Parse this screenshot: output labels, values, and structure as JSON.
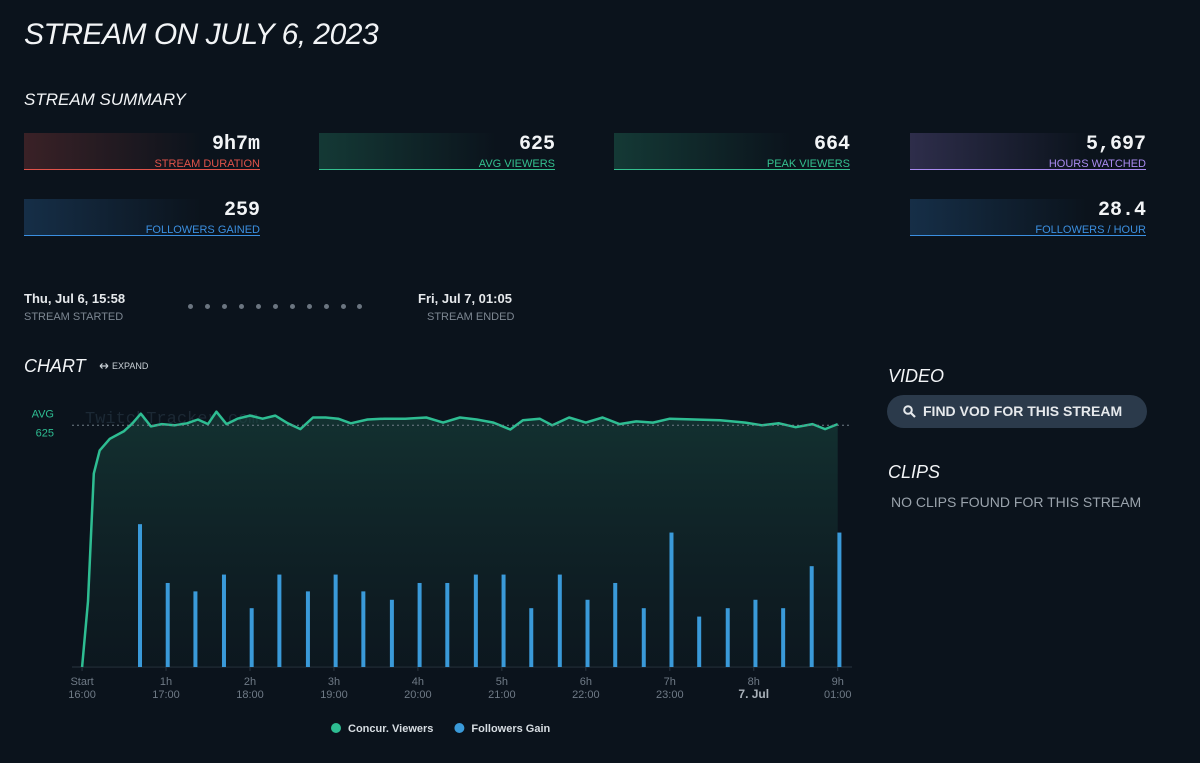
{
  "header": {
    "title": "STREAM ON JULY 6, 2023"
  },
  "summary": {
    "title": "STREAM SUMMARY",
    "stats": [
      {
        "value": "9h7m",
        "label": "STREAM DURATION",
        "color": "#e0534a"
      },
      {
        "value": "625",
        "label": "AVG VIEWERS",
        "color": "#34c08f"
      },
      {
        "value": "664",
        "label": "PEAK VIEWERS",
        "color": "#34c08f"
      },
      {
        "value": "5,697",
        "label": "HOURS WATCHED",
        "color": "#a98bf0"
      },
      {
        "value": "259",
        "label": "FOLLOWERS GAINED",
        "color": "#3b8fe0"
      },
      {
        "value": "28.4",
        "label": "FOLLOWERS / HOUR",
        "color": "#3b8fe0"
      }
    ]
  },
  "timeline": {
    "start": {
      "time": "Thu, Jul 6, 15:58",
      "label": "STREAM STARTED"
    },
    "end": {
      "time": "Fri, Jul 7, 01:05",
      "label": "STREAM ENDED"
    }
  },
  "chart_section": {
    "title": "CHART",
    "expand": "EXPAND"
  },
  "chart_data": {
    "type": "line",
    "watermark": "TwitchTracker.com",
    "xlim": [
      -0.12,
      9.17
    ],
    "xticks": [
      {
        "value": 0,
        "label": "Start"
      },
      {
        "value": 1,
        "label": "1h"
      },
      {
        "value": 2,
        "label": "2h"
      },
      {
        "value": 3,
        "label": "3h"
      },
      {
        "value": 4,
        "label": "4h"
      },
      {
        "value": 5,
        "label": "5h"
      },
      {
        "value": 6,
        "label": "6h"
      },
      {
        "value": 7,
        "label": "7h"
      },
      {
        "value": 8,
        "label": "8h"
      },
      {
        "value": 9,
        "label": "9h"
      }
    ],
    "xtick_sublabels": [
      "16:00",
      "17:00",
      "18:00",
      "19:00",
      "20:00",
      "21:00",
      "22:00",
      "23:00",
      "7. Jul",
      "01:00"
    ],
    "ylim": [
      0,
      680
    ],
    "y2lim": [
      0,
      31.3
    ],
    "avg_line": {
      "label": "AVG",
      "value": 625
    },
    "legend": "bottom",
    "series": [
      {
        "name": "Concur. Viewers",
        "color": "#2ebd92",
        "x": [
          0,
          0.07,
          0.14,
          0.21,
          0.33,
          0.5,
          0.6,
          0.7,
          0.82,
          0.95,
          1.1,
          1.25,
          1.38,
          1.5,
          1.6,
          1.72,
          1.85,
          2.0,
          2.15,
          2.3,
          2.45,
          2.6,
          2.75,
          2.9,
          3.05,
          3.2,
          3.4,
          3.6,
          3.85,
          4.1,
          4.3,
          4.5,
          4.7,
          4.9,
          5.1,
          5.25,
          5.45,
          5.6,
          5.8,
          6.0,
          6.2,
          6.4,
          6.6,
          6.8,
          7.0,
          7.3,
          7.6,
          7.9,
          8.1,
          8.3,
          8.5,
          8.7,
          8.85,
          9.0
        ],
        "values": [
          0,
          170,
          500,
          560,
          590,
          610,
          630,
          655,
          622,
          628,
          625,
          630,
          640,
          628,
          660,
          628,
          642,
          650,
          642,
          650,
          630,
          615,
          645,
          645,
          642,
          630,
          640,
          642,
          642,
          645,
          632,
          645,
          640,
          632,
          614,
          638,
          642,
          625,
          645,
          632,
          645,
          628,
          635,
          632,
          642,
          640,
          638,
          632,
          625,
          630,
          620,
          628,
          615,
          628
        ]
      },
      {
        "name": "Followers Gain",
        "color": "#3a9ad9",
        "axis": "y2",
        "x": [
          0.69,
          1.02,
          1.35,
          1.69,
          2.02,
          2.35,
          2.69,
          3.02,
          3.35,
          3.69,
          4.02,
          4.35,
          4.69,
          5.02,
          5.35,
          5.69,
          6.02,
          6.35,
          6.69,
          7.02,
          7.35,
          7.69,
          8.02,
          8.35,
          8.69,
          9.02
        ],
        "values": [
          17,
          10,
          9,
          11,
          7,
          11,
          9,
          11,
          9,
          8,
          10,
          10,
          11,
          11,
          7,
          11,
          8,
          10,
          7,
          16,
          6,
          7,
          8,
          7,
          12,
          16
        ]
      }
    ]
  },
  "video": {
    "title": "VIDEO",
    "button": "FIND VOD FOR THIS STREAM"
  },
  "clips": {
    "title": "CLIPS",
    "empty": "NO CLIPS FOUND FOR THIS STREAM"
  }
}
